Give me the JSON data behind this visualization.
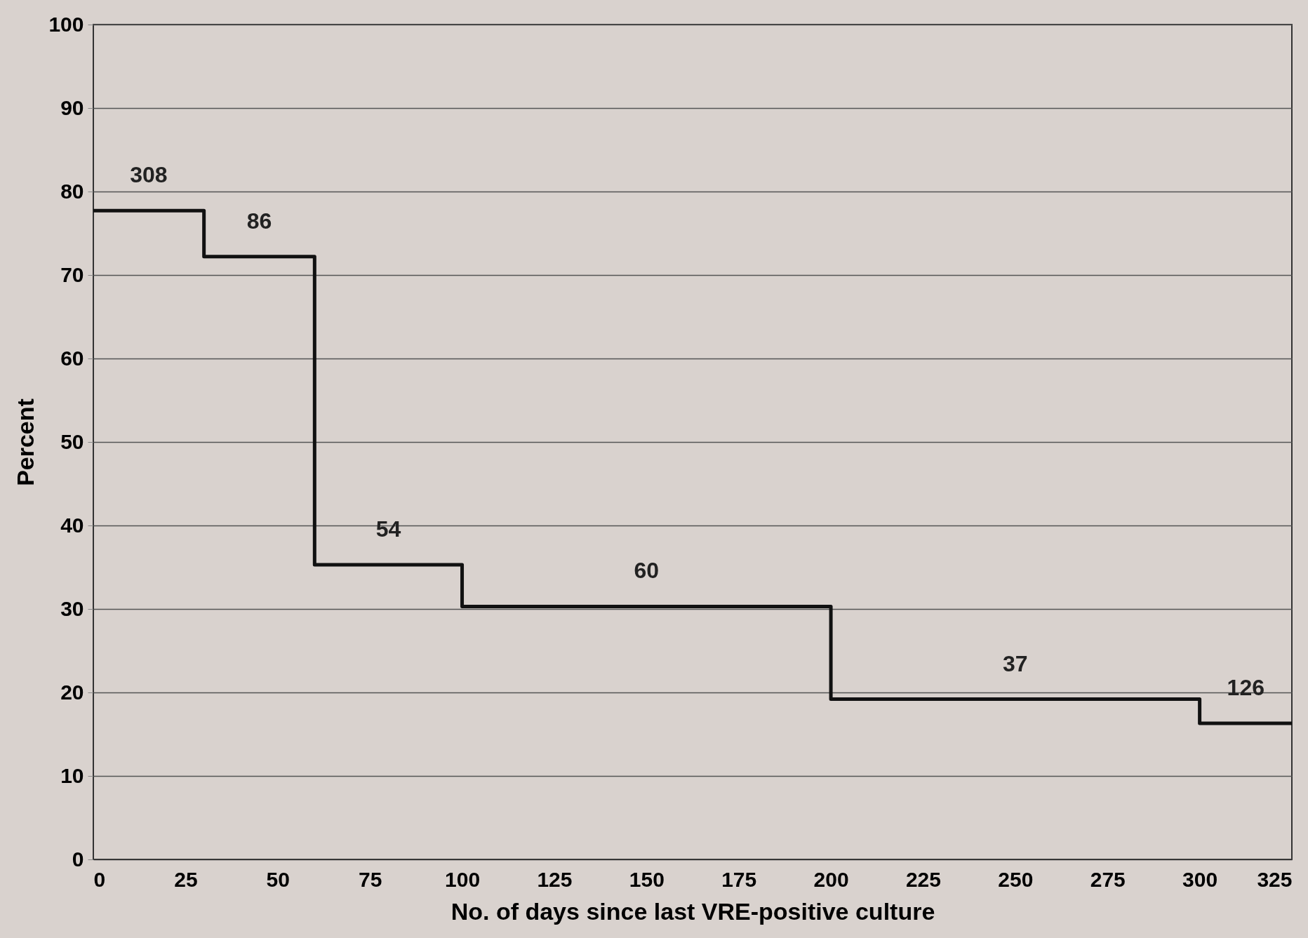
{
  "chart_data": {
    "type": "step",
    "xlabel": "No. of days since last VRE-positive culture",
    "ylabel": "Percent",
    "x": [
      0,
      30,
      60,
      100,
      200,
      300,
      325
    ],
    "series": [
      {
        "color": "#111111",
        "values": [
          77.7,
          72.2,
          35.3,
          30.3,
          19.2,
          16.3,
          16.3
        ]
      }
    ],
    "xlim": [
      0,
      325
    ],
    "xticks": [
      0,
      25,
      50,
      75,
      100,
      125,
      150,
      175,
      200,
      225,
      250,
      275,
      300,
      325
    ],
    "ylim": [
      0,
      100
    ],
    "yticks": [
      0,
      10,
      20,
      30,
      40,
      50,
      60,
      70,
      80,
      90,
      100
    ],
    "grid": "y",
    "marker": "none",
    "line_style": "solid",
    "annotations": [
      "308",
      "86",
      "54",
      "60",
      "37",
      "126"
    ]
  }
}
